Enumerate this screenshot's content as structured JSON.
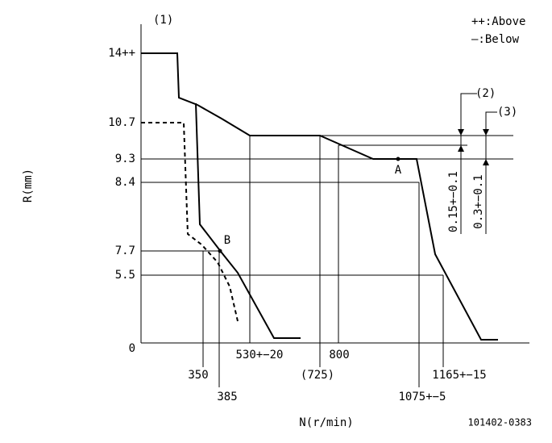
{
  "labels": {
    "curve_ref": "(1)",
    "legend_above": "++:Above",
    "legend_below": "—:Below",
    "y_axis_title": "R(mm)",
    "x_axis_title": "N(r/min)",
    "drawing_number": "101402-0383",
    "point_a": "A",
    "point_b": "B",
    "ref_2": "(2)",
    "ref_3": "(3)",
    "dim_2": "0.15+−0.1",
    "dim_3": "0.3+−0.1"
  },
  "y_labels": [
    "14++",
    "10.7",
    "9.3",
    "8.4",
    "7.7",
    "5.5",
    "0"
  ],
  "x_labels": [
    "350",
    "385",
    "530+−20",
    "800",
    "(725)",
    "1075+−5",
    "1165+−15"
  ]
}
